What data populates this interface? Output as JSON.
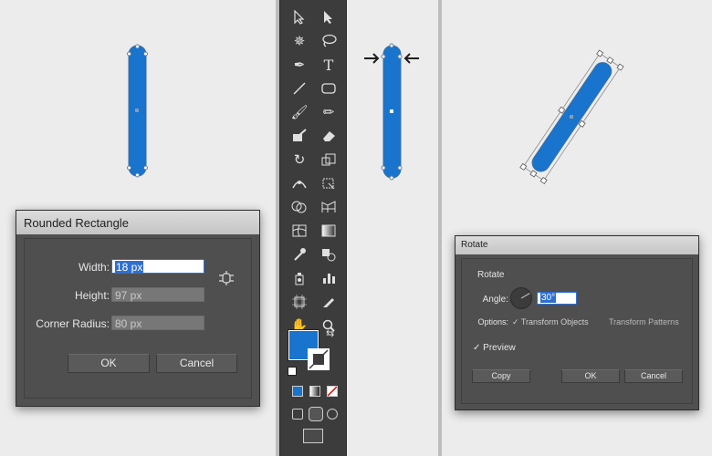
{
  "left_dialog": {
    "title": "Rounded Rectangle",
    "width_label": "Width:",
    "width_value": "18 px",
    "height_label": "Height:",
    "height_value": "97 px",
    "corner_label": "Corner Radius:",
    "corner_value": "80 px",
    "ok": "OK",
    "cancel": "Cancel"
  },
  "right_dialog": {
    "title": "Rotate",
    "section": "Rotate",
    "angle_label": "Angle:",
    "angle_value": "30°",
    "angle_degrees": 30,
    "options_label": "Options:",
    "opt_transform_objects": "Transform Objects",
    "opt_transform_patterns": "Transform Patterns",
    "preview_label": "Preview",
    "copy": "Copy",
    "ok": "OK",
    "cancel": "Cancel"
  },
  "toolbar": {
    "type_tool": "T",
    "tools": [
      "selection-tool",
      "direct-selection-tool",
      "magic-wand-tool",
      "lasso-tool",
      "pen-tool",
      "type-tool",
      "line-tool",
      "rectangle-tool",
      "paintbrush-tool",
      "pencil-tool",
      "blob-brush-tool",
      "eraser-tool",
      "rotate-tool",
      "scale-tool",
      "width-tool",
      "free-transform-tool",
      "shape-builder-tool",
      "perspective-grid-tool",
      "mesh-tool",
      "gradient-tool",
      "eyedropper-tool",
      "blend-tool",
      "symbol-sprayer-tool",
      "column-graph-tool",
      "artboard-tool",
      "slice-tool",
      "hand-tool",
      "zoom-tool"
    ]
  },
  "colors": {
    "fill": "#1874cd",
    "dialog_bg": "#505050",
    "canvas_bg": "#ececec",
    "toolbar_bg": "#3c3c3c",
    "highlight": "#2f6fd0"
  }
}
